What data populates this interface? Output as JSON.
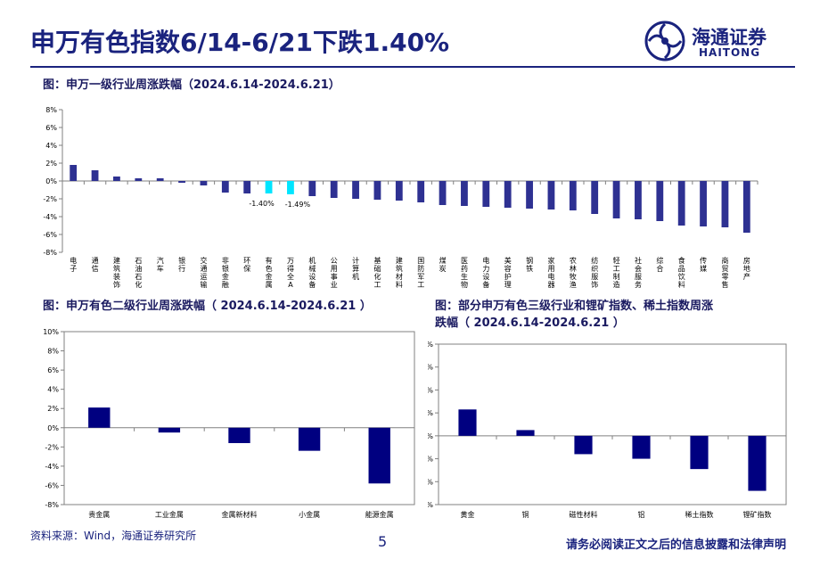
{
  "header": {
    "title": "申万有色指数6/14-6/21下跌1.40%",
    "logo_cn": "海通证券",
    "logo_en": "HAITONG"
  },
  "charts_titles": {
    "c1": "图：申万一级行业周涨跌幅（2024.6.14-2024.6.21）",
    "c2": "图：申万有色二级行业周涨跌幅（ 2024.6.14-2024.6.21 ）",
    "c3_line1": "图：部分申万有色三级行业和锂矿指数、稀土指数周涨",
    "c3_line2": "跌幅（ 2024.6.14-2024.6.21 ）"
  },
  "footer": {
    "source": "资料来源：Wind，海通证券研究所",
    "page": "5",
    "disclaimer": "请务必阅读正文之后的信息披露和法律声明"
  },
  "colors": {
    "bar": "#2e3192",
    "highlight": "#00e5ff",
    "bar_dark": "#000080",
    "title": "#1a237e"
  },
  "chart_data": [
    {
      "type": "bar",
      "title": "图：申万一级行业周涨跌幅（2024.6.14-2024.6.21）",
      "ylim": [
        -8,
        8
      ],
      "yticks": [
        8,
        6,
        4,
        2,
        0,
        -2,
        -4,
        -6,
        -8
      ],
      "ytick_labels": [
        "8%",
        "6%",
        "4%",
        "2%",
        "0%",
        "-2%",
        "-4%",
        "-6%",
        "-8%"
      ],
      "categories": [
        "电子",
        "通信",
        "建筑装饰",
        "石油石化",
        "汽车",
        "银行",
        "交通运输",
        "非银金融",
        "环保",
        "有色金属",
        "万得全A",
        "机械设备",
        "公用事业",
        "计算机",
        "基础化工",
        "建筑材料",
        "国防军工",
        "煤炭",
        "医药生物",
        "电力设备",
        "美容护理",
        "钢铁",
        "家用电器",
        "农林牧渔",
        "纺织服饰",
        "轻工制造",
        "社会服务",
        "综合",
        "食品饮料",
        "传媒",
        "商贸零售",
        "房地产"
      ],
      "values": [
        1.8,
        1.2,
        0.5,
        0.3,
        0.3,
        -0.2,
        -0.5,
        -1.3,
        -1.4,
        -1.4,
        -1.49,
        -1.7,
        -1.9,
        -2.0,
        -2.1,
        -2.2,
        -2.4,
        -2.7,
        -2.8,
        -2.9,
        -3.0,
        -3.1,
        -3.2,
        -3.3,
        -3.7,
        -4.2,
        -4.3,
        -4.5,
        -5.0,
        -5.1,
        -5.2,
        -5.8
      ],
      "highlight_indices": [
        9,
        10
      ],
      "data_labels": [
        {
          "index": 9,
          "text": "-1.40%"
        },
        {
          "index": 10,
          "text": "-1.49%"
        }
      ]
    },
    {
      "type": "bar",
      "title": "图：申万有色二级行业周涨跌幅（ 2024.6.14-2024.6.21 ）",
      "ylim": [
        -8,
        10
      ],
      "yticks": [
        10,
        8,
        6,
        4,
        2,
        0,
        -2,
        -4,
        -6,
        -8
      ],
      "ytick_labels": [
        "10%",
        "8%",
        "6%",
        "4%",
        "2%",
        "0%",
        "-2%",
        "-4%",
        "-6%",
        "-8%"
      ],
      "categories": [
        "贵金属",
        "工业金属",
        "金属新材料",
        "小金属",
        "能源金属"
      ],
      "values": [
        2.1,
        -0.5,
        -1.6,
        -2.4,
        -5.8
      ]
    },
    {
      "type": "bar",
      "title": "图：部分申万有色三级行业和锂矿指数、稀土指数周涨跌幅（ 2024.6.14-2024.6.21 ）",
      "ylim": [
        -6,
        8
      ],
      "yticks": [
        8,
        6,
        4,
        2,
        0,
        -2,
        -4,
        -6
      ],
      "ytick_labels": [
        "8%",
        "6%",
        "4%",
        "2%",
        "0%",
        "-2%",
        "-4%",
        "-6%"
      ],
      "categories": [
        "黄金",
        "铜",
        "磁性材料",
        "铝",
        "稀土指数",
        "锂矿指数"
      ],
      "values": [
        2.3,
        0.5,
        -1.6,
        -2.0,
        -2.9,
        -4.8
      ]
    }
  ]
}
